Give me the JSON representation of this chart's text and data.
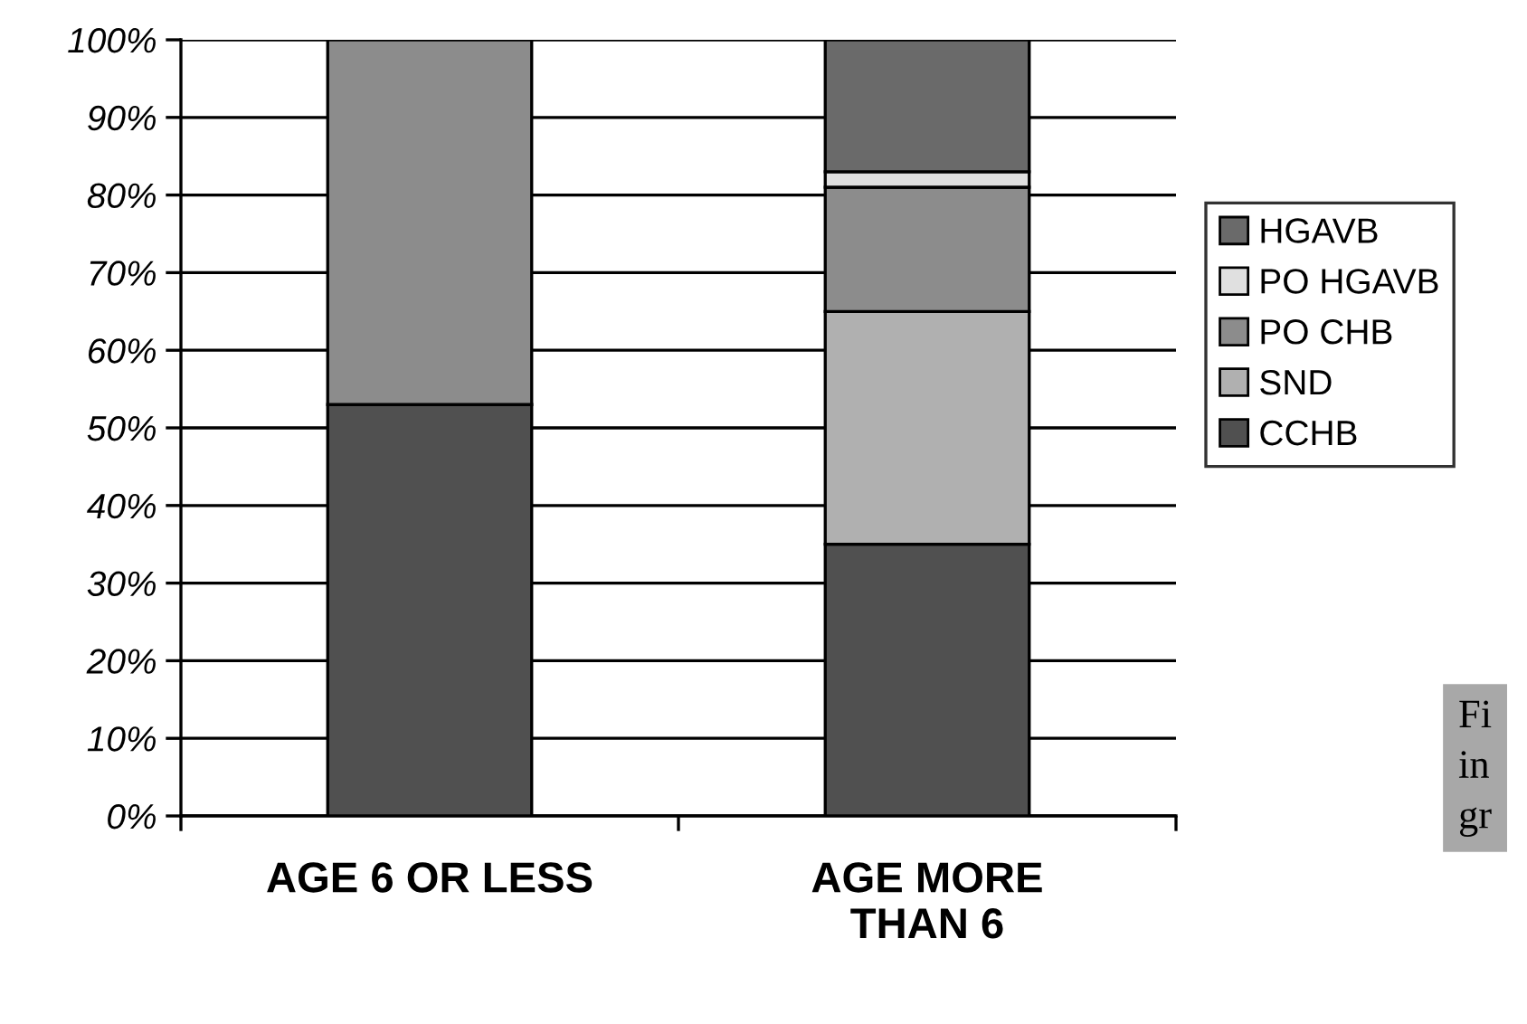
{
  "chart_data": {
    "type": "bar",
    "stacked": true,
    "categories": [
      "AGE 6 OR LESS",
      "AGE MORE\nTHAN 6"
    ],
    "series": [
      {
        "name": "CCHB",
        "color": "#505050",
        "values": [
          53,
          35
        ]
      },
      {
        "name": "SND",
        "color": "#b0b0b0",
        "values": [
          null,
          30
        ]
      },
      {
        "name": "PO CHB",
        "color": "#8c8c8c",
        "values": [
          47,
          16
        ]
      },
      {
        "name": "PO HGAVB",
        "color": "#e0e0e0",
        "values": [
          null,
          2
        ]
      },
      {
        "name": "HGAVB",
        "color": "#6a6a6a",
        "values": [
          null,
          17
        ]
      }
    ],
    "ylim": [
      0,
      100
    ],
    "yticks": [
      {
        "value": 0,
        "label": "0%"
      },
      {
        "value": 10,
        "label": "10%"
      },
      {
        "value": 20,
        "label": "20%"
      },
      {
        "value": 30,
        "label": "30%"
      },
      {
        "value": 40,
        "label": "40%"
      },
      {
        "value": 50,
        "label": "50%"
      },
      {
        "value": 60,
        "label": "60%"
      },
      {
        "value": 70,
        "label": "70%"
      },
      {
        "value": 80,
        "label": "80%"
      },
      {
        "value": 90,
        "label": "90%"
      },
      {
        "value": 100,
        "label": "100%"
      }
    ],
    "grid": "y",
    "legend": "right",
    "annotations": [
      "Fi\nin\ngr"
    ]
  }
}
